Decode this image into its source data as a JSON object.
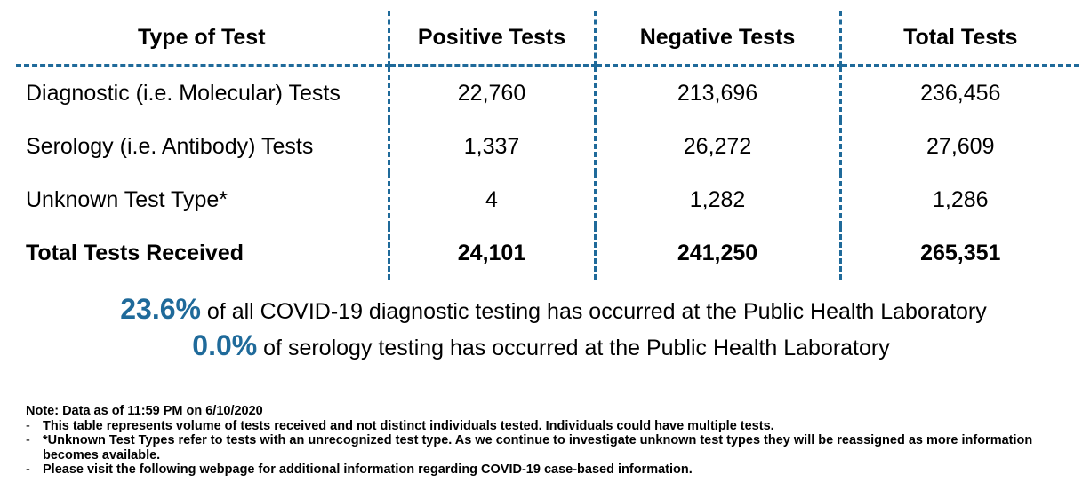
{
  "table": {
    "headers": [
      "Type of Test",
      "Positive Tests",
      "Negative Tests",
      "Total Tests"
    ],
    "rows": [
      {
        "type": "Diagnostic (i.e. Molecular) Tests",
        "positive": "22,760",
        "negative": "213,696",
        "total": "236,456"
      },
      {
        "type": "Serology (i.e. Antibody) Tests",
        "positive": "1,337",
        "negative": "26,272",
        "total": "27,609"
      },
      {
        "type": "Unknown Test Type*",
        "positive": "4",
        "negative": "1,282",
        "total": "1,286"
      }
    ],
    "total_row": {
      "type": "Total Tests Received",
      "positive": "24,101",
      "negative": "241,250",
      "total": "265,351"
    }
  },
  "summary": {
    "diagnostic_pct": "23.6%",
    "diagnostic_text": "of all COVID-19 diagnostic testing has occurred at the Public Health Laboratory",
    "serology_pct": "0.0%",
    "serology_text": "of serology testing has occurred at the Public Health Laboratory"
  },
  "notes": {
    "heading": "Note: Data as of 11:59 PM on 6/10/2020",
    "bullet_marker": "-",
    "items": [
      "This table represents volume of tests received and not distinct individuals tested. Individuals could have multiple tests.",
      "*Unknown Test Types refer to tests with an unrecognized test type. As we continue to investigate unknown test types they will be reassigned as more information becomes available.",
      "Please visit the following webpage for additional information regarding COVID-19 case-based information."
    ]
  },
  "colors": {
    "accent": "#1f6a9a"
  }
}
